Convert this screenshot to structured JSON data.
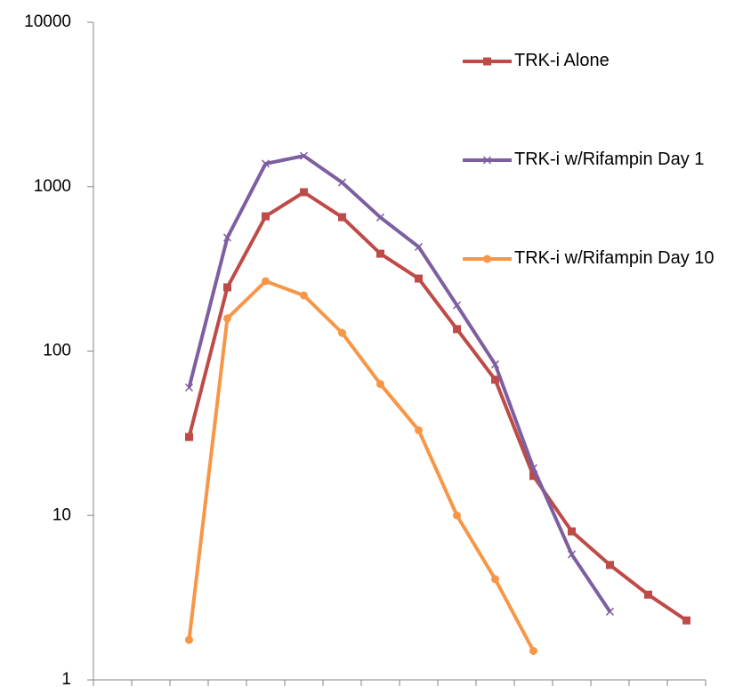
{
  "chart_data": {
    "type": "line",
    "categories": [
      null,
      null,
      null,
      null,
      null,
      null,
      null,
      null,
      null,
      null,
      null,
      null,
      null,
      null,
      null,
      null
    ],
    "series": [
      {
        "name": "TRK-i Alone",
        "color": "#be4b48",
        "marker": "square",
        "values": [
          null,
          null,
          30,
          244,
          660,
          925,
          652,
          391,
          276,
          136,
          67,
          17.4,
          8,
          5,
          3.3,
          2.3
        ]
      },
      {
        "name": "TRK-i w/Rifampin Day 1",
        "color": "#7d5fa0",
        "marker": "x",
        "values": [
          null,
          null,
          60,
          490,
          1380,
          1540,
          1060,
          650,
          430,
          190,
          83,
          19.4,
          5.8,
          2.6,
          null,
          null
        ]
      },
      {
        "name": "TRK-i w/Rifampin Day 10",
        "color": "#f79646",
        "marker": "circle",
        "values": [
          null,
          null,
          1.75,
          158,
          266,
          218,
          129,
          63,
          33,
          10,
          4.1,
          1.5,
          null,
          null,
          null,
          null
        ]
      }
    ],
    "ylim": [
      1,
      10000
    ],
    "yticks": [
      1,
      10,
      100,
      1000,
      10000
    ],
    "log_y": true,
    "grid": false,
    "legend": "top-right"
  }
}
